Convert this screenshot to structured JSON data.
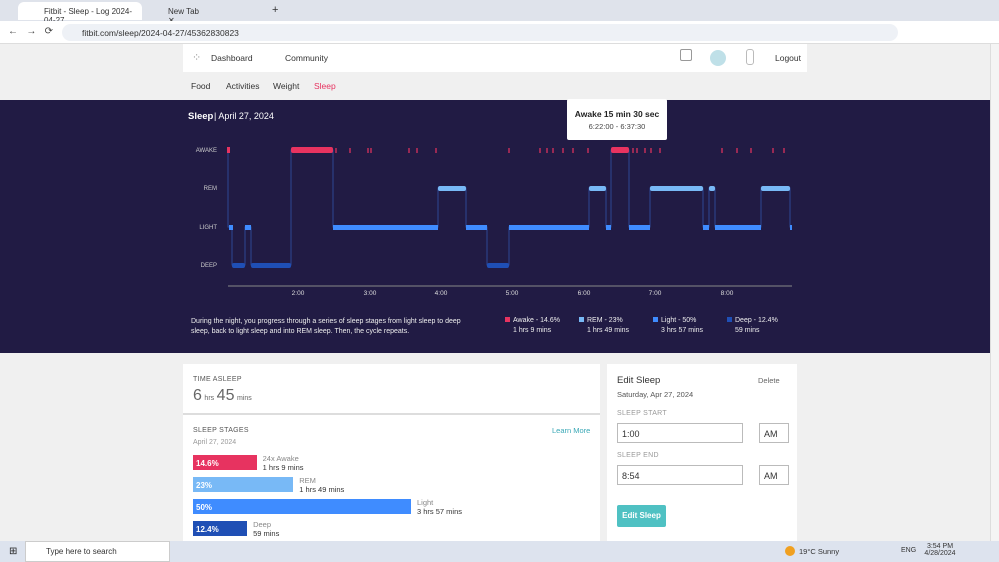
{
  "browser": {
    "tabs": [
      "Fitbit - Sleep - Log 2024-04-27",
      "New Tab"
    ],
    "url": "fitbit.com/sleep/2024-04-27/45362830823"
  },
  "nav": {
    "items": [
      "Dashboard",
      "Community"
    ],
    "logout": "Logout",
    "subnav": [
      "Food",
      "Activities",
      "Weight",
      "Sleep"
    ]
  },
  "sleep_panel": {
    "title": "Sleep",
    "date": "| April 27, 2024",
    "tooltip": {
      "title": "Awake 15 min 30 sec",
      "range": "6:22:00 - 6:37:30"
    },
    "stages": [
      "AWAKE",
      "REM",
      "LIGHT",
      "DEEP"
    ],
    "times": [
      "2:00",
      "3:00",
      "4:00",
      "5:00",
      "6:00",
      "7:00",
      "8:00"
    ],
    "description": [
      "During the night, you progress through a series of sleep stages from light sleep to deep",
      "sleep, back to light sleep and into REM sleep. Then, the cycle repeats."
    ],
    "legend": [
      {
        "name": "Awake - 14.6%",
        "duration": "1 hrs 9 mins"
      },
      {
        "name": "REM - 23%",
        "duration": "1 hrs 49 mins"
      },
      {
        "name": "Light - 50%",
        "duration": "3 hrs 57 mins"
      },
      {
        "name": "Deep - 12.4%",
        "duration": "59 mins"
      }
    ]
  },
  "time_asleep": {
    "heading": "TIME ASLEEP",
    "hours": "6",
    "hours_unit": "hrs",
    "minutes": "45",
    "minutes_unit": "mins"
  },
  "sleep_stages": {
    "heading": "SLEEP STAGES",
    "link": "Learn More",
    "date": "April 27, 2024",
    "bars": [
      {
        "percent": {
          "value": 14.6,
          "label": "14.6%"
        },
        "name": "24x Awake",
        "duration": "1 hrs 9 mins",
        "color": "#e73360"
      },
      {
        "percent": {
          "value": 23,
          "label": "23%"
        },
        "name": "REM",
        "duration": "1 hrs 49 mins",
        "color": "#78b9f6"
      },
      {
        "percent": {
          "value": 50,
          "label": "50%"
        },
        "name": "Light",
        "duration": "3 hrs 57 mins",
        "color": "#3f8cff"
      },
      {
        "percent": {
          "value": 12.4,
          "label": "12.4%"
        },
        "name": "Deep",
        "duration": "59 mins",
        "color": "#1f4fb5"
      }
    ]
  },
  "edit_sleep": {
    "title": "Edit Sleep",
    "delete": "Delete",
    "date": "Saturday, Apr 27, 2024",
    "start_label": "SLEEP START",
    "start": "1:00",
    "start_ampm": "AM",
    "end_label": "SLEEP END",
    "end": "8:54",
    "end_ampm": "AM",
    "button": "Edit Sleep"
  },
  "taskbar": {
    "search": "Type here to search",
    "weather": "19°C Sunny",
    "lang": "ENG",
    "time": "3:54 PM",
    "date": "4/28/2024"
  }
}
